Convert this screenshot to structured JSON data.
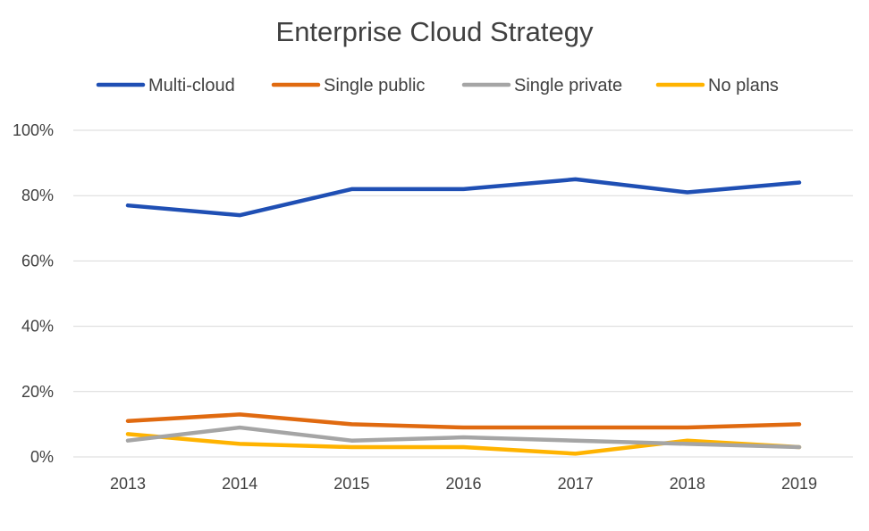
{
  "chart_data": {
    "type": "line",
    "title": "Enterprise Cloud Strategy",
    "xlabel": "",
    "ylabel": "",
    "categories": [
      "2013",
      "2014",
      "2015",
      "2016",
      "2017",
      "2018",
      "2019"
    ],
    "ylim": [
      0,
      100
    ],
    "yticks": [
      0,
      20,
      40,
      60,
      80,
      100
    ],
    "ytick_labels": [
      "0%",
      "20%",
      "40%",
      "60%",
      "80%",
      "100%"
    ],
    "grid": true,
    "legend_position": "top",
    "series": [
      {
        "name": "Multi-cloud",
        "color": "#1f4fb4",
        "values": [
          77,
          74,
          82,
          82,
          85,
          81,
          84
        ]
      },
      {
        "name": "Single public",
        "color": "#e06a10",
        "values": [
          11,
          13,
          10,
          9,
          9,
          9,
          10
        ]
      },
      {
        "name": "Single private",
        "color": "#a5a5a5",
        "values": [
          5,
          9,
          5,
          6,
          5,
          4,
          3
        ]
      },
      {
        "name": "No plans",
        "color": "#ffb300",
        "values": [
          7,
          4,
          3,
          3,
          1,
          5,
          3
        ]
      }
    ]
  }
}
